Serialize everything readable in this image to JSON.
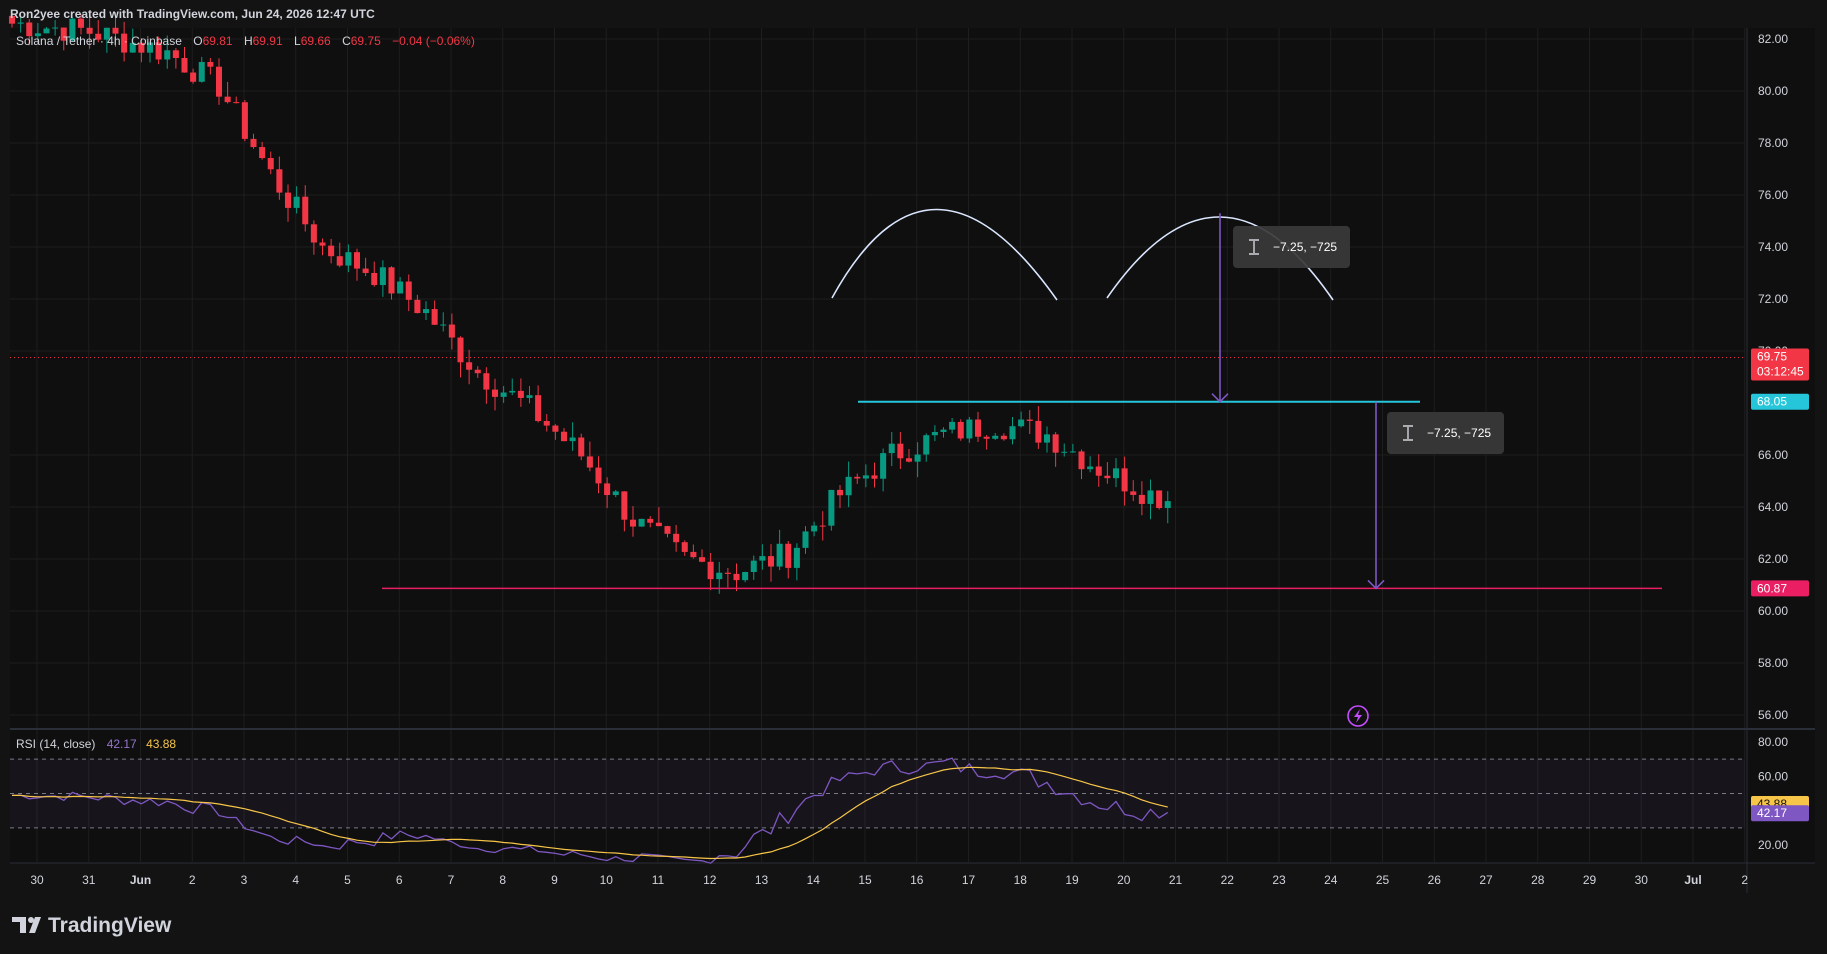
{
  "header": {
    "credit": "Ron2yee created with TradingView.com, Jun 24, 2026 12:47 UTC",
    "symbol": "Solana / Tether · 4h · Coinbase",
    "open_label": "O",
    "open": "69.81",
    "high_label": "H",
    "high": "69.91",
    "low_label": "L",
    "low": "69.66",
    "close_label": "C",
    "close": "69.75",
    "change": "−0.04 (−0.06%)"
  },
  "footer": {
    "logo": "TradingView"
  },
  "price_badges": {
    "last_price": "69.75",
    "countdown": "03:12:45",
    "neckline": "68.05",
    "target": "60.87"
  },
  "measure_labels": {
    "label_1": "−7.25, −725",
    "label_2": "−7.25, −725"
  },
  "rsi": {
    "title": "RSI (14, close)",
    "rsi_value": "42.17",
    "ma_value": "43.88",
    "axis_ticks": [
      "80.00",
      "60.00",
      "20.00"
    ],
    "levels": [
      70,
      50,
      30
    ]
  },
  "colors": {
    "background": "#131313",
    "grid": "#1e1e1e",
    "up": "#089981",
    "down": "#f23645",
    "neckline": "#26c6da",
    "target": "#e91e63",
    "measure": "#7e57c2",
    "arcs": "#dbe6ff",
    "rsi_line": "#7e57c2",
    "rsi_ma": "#f7c548",
    "text": "#d1d4dc"
  },
  "chart_data": {
    "type": "candlestick",
    "x_tick_labels": [
      "30",
      "31",
      "Jun",
      "2",
      "3",
      "4",
      "5",
      "6",
      "7",
      "8",
      "9",
      "10",
      "11",
      "12",
      "13",
      "14",
      "15",
      "16",
      "17",
      "18",
      "19",
      "20",
      "21",
      "22",
      "23",
      "24",
      "25",
      "26",
      "27",
      "28",
      "29",
      "30",
      "Jul",
      "2"
    ],
    "y_tick_labels": [
      "82.00",
      "80.00",
      "78.00",
      "76.00",
      "74.00",
      "72.00",
      "70.00",
      "66.00",
      "64.00",
      "62.00",
      "60.00",
      "58.00",
      "56.00"
    ],
    "ylim": [
      55.5,
      82.5
    ],
    "horizontal_lines": [
      {
        "price": 68.05
      },
      {
        "price": 60.87
      }
    ],
    "price_waypoints": [
      [
        0,
        82.6
      ],
      [
        3,
        82.3
      ],
      [
        6,
        81.5
      ],
      [
        8,
        80.2
      ],
      [
        10,
        76.8
      ],
      [
        12,
        74.0
      ],
      [
        14,
        73.0
      ],
      [
        16,
        71.5
      ],
      [
        18,
        69.2
      ],
      [
        20,
        67.8
      ],
      [
        22,
        66.0
      ],
      [
        24,
        63.5
      ],
      [
        26,
        62.0
      ],
      [
        28,
        61.5
      ],
      [
        30,
        62.2
      ],
      [
        32,
        64.5
      ],
      [
        34,
        66.0
      ],
      [
        36,
        66.8
      ],
      [
        38,
        67.2
      ],
      [
        40,
        66.8
      ],
      [
        42,
        65.5
      ],
      [
        44,
        64.5
      ],
      [
        46,
        64.0
      ],
      [
        48,
        64.8
      ],
      [
        50,
        65.8
      ],
      [
        52,
        67.0
      ],
      [
        54,
        66.8
      ],
      [
        56,
        67.3
      ],
      [
        58,
        68.0
      ],
      [
        60,
        68.8
      ],
      [
        62,
        68.5
      ],
      [
        64,
        69.0
      ],
      [
        66,
        71.0
      ],
      [
        68,
        73.8
      ],
      [
        70,
        74.6
      ],
      [
        72,
        74.2
      ],
      [
        74,
        74.0
      ],
      [
        76,
        73.0
      ],
      [
        78,
        72.0
      ],
      [
        79,
        71.0
      ],
      [
        80,
        69.0
      ],
      [
        82,
        68.4
      ],
      [
        84,
        68.6
      ],
      [
        86,
        69.5
      ],
      [
        88,
        71.2
      ],
      [
        90,
        72.5
      ],
      [
        92,
        73.4
      ],
      [
        94,
        74.3
      ],
      [
        95,
        74.0
      ],
      [
        96,
        73.0
      ],
      [
        98,
        71.5
      ],
      [
        99,
        70.0
      ],
      [
        101,
        69.0
      ],
      [
        103,
        69.4
      ],
      [
        105,
        69.75
      ]
    ]
  }
}
